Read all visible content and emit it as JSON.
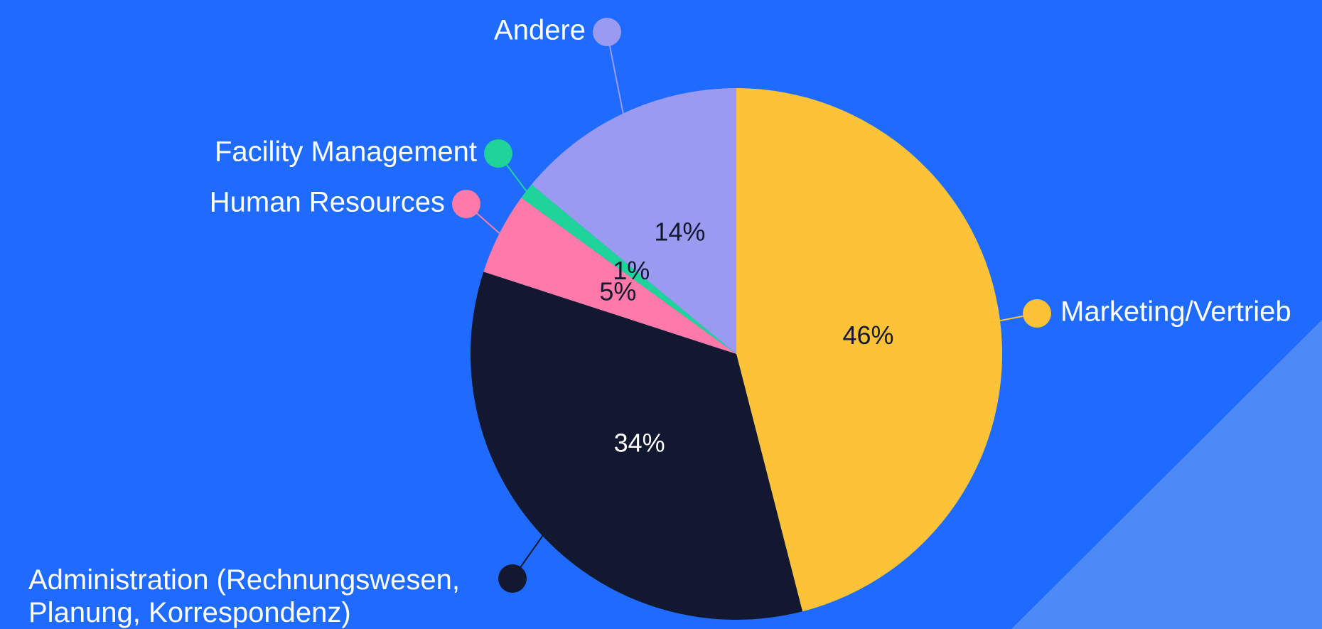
{
  "chart_data": {
    "type": "pie",
    "categories": [
      "Marketing/Vertrieb",
      "Administration (Rechnungswesen, Planung, Korrespondenz)",
      "Human Resources",
      "Facility Management",
      "Andere"
    ],
    "values": [
      46,
      34,
      5,
      1,
      14
    ],
    "value_labels": [
      "46%",
      "34%",
      "5%",
      "1%",
      "14%"
    ],
    "colors": [
      "#fcc238",
      "#12182f",
      "#ff7aa8",
      "#1fd49a",
      "#9a9af0"
    ]
  }
}
